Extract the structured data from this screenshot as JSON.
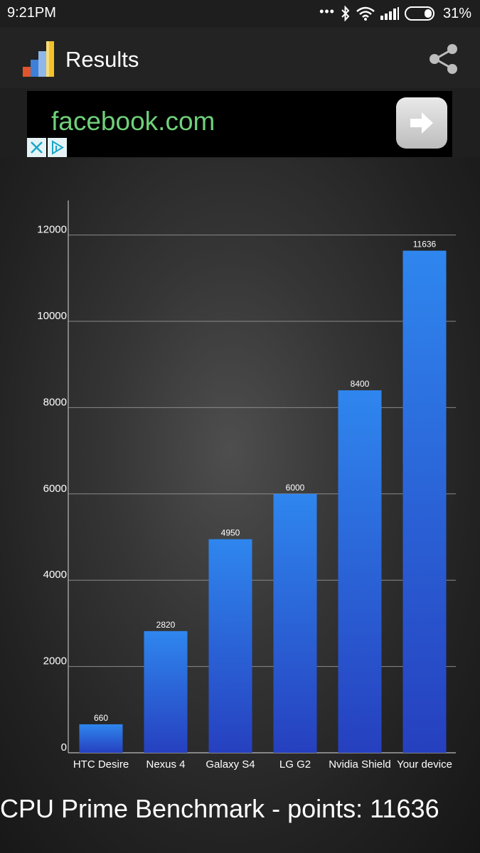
{
  "status_bar": {
    "time": "9:21PM",
    "battery": "31%"
  },
  "app_bar": {
    "title": "Results",
    "share_icon": "share-icon"
  },
  "ad": {
    "text": "facebook.com",
    "go_icon": "arrow-right-icon",
    "close_icon": "close-icon",
    "adchoices_icon": "adchoices-icon"
  },
  "chart_data": {
    "type": "bar",
    "categories": [
      "HTC Desire",
      "Nexus 4",
      "Galaxy S4",
      "LG G2",
      "Nvidia Shield",
      "Your device"
    ],
    "values": [
      660,
      2820,
      4950,
      6000,
      8400,
      11636
    ],
    "y_ticks": [
      "0",
      "2000",
      "4000",
      "6000",
      "8000",
      "10000",
      "12000"
    ],
    "ylim": [
      0,
      12800
    ],
    "grid": true,
    "colors": {
      "bar_top": "#2f86ee",
      "bar_bottom": "#2640bf",
      "grid": "#8a8a8a",
      "axis": "#bbbbbb"
    }
  },
  "footer": {
    "title": "CPU Prime Benchmark - points: 11636"
  }
}
